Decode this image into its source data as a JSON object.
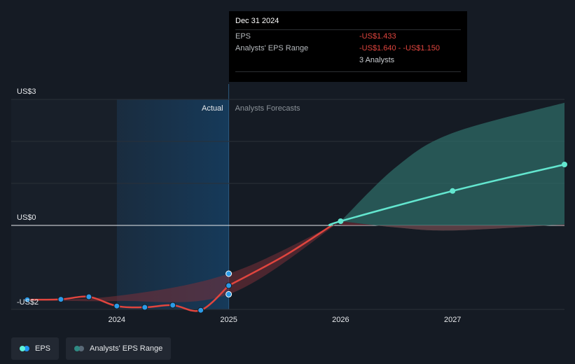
{
  "tooltip": {
    "date": "Dec 31 2024",
    "eps_label": "EPS",
    "eps_value": "-US$1.433",
    "range_label": "Analysts' EPS Range",
    "range_value": "-US$1.640 - -US$1.150",
    "analysts": "3 Analysts"
  },
  "labels": {
    "actual": "Actual",
    "forecast": "Analysts Forecasts"
  },
  "legend": [
    {
      "label": "EPS",
      "colors": [
        "#2196f3",
        "#5ff2d8"
      ]
    },
    {
      "label": "Analysts' EPS Range",
      "colors": [
        "#2f8a83",
        "#5a6a78"
      ]
    }
  ],
  "colors": {
    "actual_line": "#e0453e",
    "forecast_line": "#63e6cf",
    "point": "#2b9be8",
    "forecast_band": "#2e6b66",
    "range_band": "#7a2f38"
  },
  "chart_data": {
    "type": "line",
    "y_ticks": [
      {
        "value": 3,
        "label": "US$3"
      },
      {
        "value": 0,
        "label": "US$0"
      },
      {
        "value": -2,
        "label": "-US$2"
      }
    ],
    "x_ticks": [
      {
        "value": 2024,
        "label": "2024"
      },
      {
        "value": 2025,
        "label": "2025"
      },
      {
        "value": 2026,
        "label": "2026"
      },
      {
        "value": 2027,
        "label": "2027"
      }
    ],
    "xlim": [
      2023.2,
      2028.0
    ],
    "ylim": [
      -2.15,
      3.0
    ],
    "actual_eps": [
      {
        "x": 2023.2,
        "y": -1.77
      },
      {
        "x": 2023.5,
        "y": -1.76
      },
      {
        "x": 2023.75,
        "y": -1.7
      },
      {
        "x": 2024.0,
        "y": -1.92
      },
      {
        "x": 2024.25,
        "y": -1.95
      },
      {
        "x": 2024.5,
        "y": -1.9
      },
      {
        "x": 2024.75,
        "y": -2.02
      },
      {
        "x": 2025.0,
        "y": -1.433
      }
    ],
    "forecast_eps": [
      {
        "x": 2025.0,
        "y": -1.433
      },
      {
        "x": 2026.0,
        "y": 0.1
      },
      {
        "x": 2027.0,
        "y": 0.82
      },
      {
        "x": 2028.0,
        "y": 1.45
      }
    ],
    "extra_points": [
      {
        "x": 2025.0,
        "y": -1.15
      },
      {
        "x": 2025.0,
        "y": -1.64
      }
    ],
    "eps_range": [
      {
        "x": 2023.2,
        "low": -1.77,
        "high": -1.77
      },
      {
        "x": 2024.0,
        "low": -1.8,
        "high": -1.68
      },
      {
        "x": 2025.0,
        "low": -1.64,
        "high": -1.15
      },
      {
        "x": 2026.0,
        "low": 0.1,
        "high": 0.1
      },
      {
        "x": 2026.5,
        "low": -0.05,
        "high": 1.4
      },
      {
        "x": 2027.0,
        "low": -0.12,
        "high": 2.2
      },
      {
        "x": 2028.0,
        "low": 0.02,
        "high": 2.92
      }
    ]
  }
}
